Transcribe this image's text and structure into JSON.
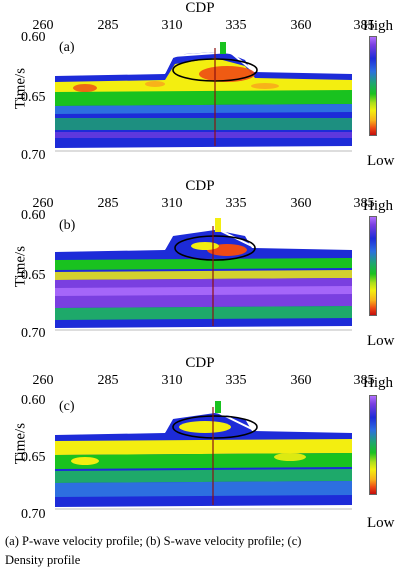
{
  "axis": {
    "x_title": "CDP",
    "x_ticks": [
      "260",
      "285",
      "310",
      "335",
      "360",
      "385"
    ],
    "y_title": "Time/s",
    "y_ticks": [
      "0.60",
      "0.65",
      "0.70"
    ]
  },
  "colorbar": {
    "high": "High",
    "low": "Low"
  },
  "panels": [
    {
      "label": "(a)"
    },
    {
      "label": "(b)"
    },
    {
      "label": "(c)"
    }
  ],
  "caption": {
    "line1": "(a) P-wave velocity profile; (b) S-wave velocity profile; (c)",
    "line2": "Density profile"
  },
  "colors": {
    "purple": "#7a3fe0",
    "blue": "#1d2bd8",
    "green": "#19c21f",
    "yellow": "#f3ee10",
    "red": "#c40e0e"
  }
}
